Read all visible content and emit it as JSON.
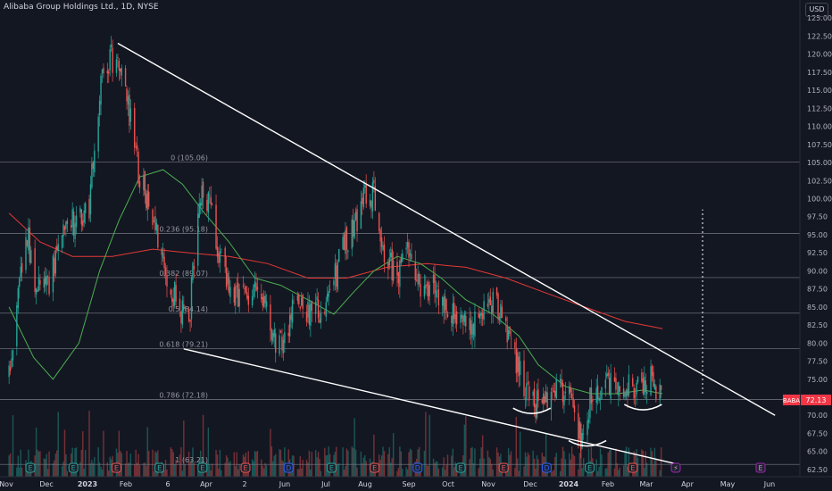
{
  "header": {
    "title": "Alibaba Group Holdings Ltd., 1D, NYSE",
    "currency": "USD"
  },
  "chart_data": {
    "type": "candlestick",
    "ylim": [
      61.5,
      127.5
    ],
    "y_ticks": [
      "62.50",
      "65.00",
      "67.50",
      "70.00",
      "72.50",
      "75.00",
      "77.50",
      "80.00",
      "82.50",
      "85.00",
      "87.50",
      "90.00",
      "92.50",
      "95.00",
      "97.50",
      "100.00",
      "102.50",
      "105.00",
      "107.50",
      "110.00",
      "112.50",
      "115.00",
      "117.50",
      "120.00",
      "122.50",
      "125.00"
    ],
    "x_ticks": [
      "Nov",
      "Dec",
      "2023",
      "Feb",
      "6",
      "Apr",
      "2",
      "Jun",
      "Jul",
      "Aug",
      "Sep",
      "Oct",
      "Nov",
      "Dec",
      "2024",
      "Feb",
      "Mar",
      "Apr",
      "May",
      "Jun"
    ],
    "x_ticks_bold": [
      "2023",
      "2024"
    ],
    "price": [
      [
        "2022-11-01",
        75
      ],
      [
        "2022-11-08",
        86
      ],
      [
        "2022-11-15",
        95
      ],
      [
        "2022-11-22",
        88
      ],
      [
        "2022-12-01",
        88
      ],
      [
        "2022-12-15",
        96
      ],
      [
        "2023-01-02",
        99
      ],
      [
        "2023-01-10",
        115
      ],
      [
        "2023-01-18",
        120
      ],
      [
        "2023-01-25",
        118
      ],
      [
        "2023-02-01",
        113
      ],
      [
        "2023-02-10",
        103
      ],
      [
        "2023-02-20",
        98
      ],
      [
        "2023-03-01",
        91
      ],
      [
        "2023-03-10",
        86
      ],
      [
        "2023-03-20",
        82
      ],
      [
        "2023-03-27",
        100
      ],
      [
        "2023-04-05",
        100
      ],
      [
        "2023-04-14",
        91
      ],
      [
        "2023-04-25",
        86
      ],
      [
        "2023-05-05",
        86
      ],
      [
        "2023-05-15",
        88
      ],
      [
        "2023-05-25",
        80
      ],
      [
        "2023-06-01",
        80
      ],
      [
        "2023-06-12",
        87
      ],
      [
        "2023-06-22",
        84
      ],
      [
        "2023-07-05",
        85
      ],
      [
        "2023-07-15",
        92
      ],
      [
        "2023-07-25",
        96
      ],
      [
        "2023-08-03",
        100
      ],
      [
        "2023-08-10",
        101
      ],
      [
        "2023-08-18",
        93
      ],
      [
        "2023-08-28",
        89
      ],
      [
        "2023-09-05",
        92
      ],
      [
        "2023-09-15",
        88
      ],
      [
        "2023-09-25",
        88
      ],
      [
        "2023-10-05",
        85
      ],
      [
        "2023-10-18",
        82
      ],
      [
        "2023-10-30",
        83
      ],
      [
        "2023-11-10",
        86
      ],
      [
        "2023-11-15",
        85
      ],
      [
        "2023-11-22",
        80
      ],
      [
        "2023-12-01",
        76
      ],
      [
        "2023-12-08",
        72
      ],
      [
        "2023-12-18",
        71
      ],
      [
        "2023-12-29",
        75
      ],
      [
        "2024-01-08",
        72
      ],
      [
        "2024-01-17",
        67
      ],
      [
        "2024-01-24",
        72
      ],
      [
        "2024-02-05",
        74
      ],
      [
        "2024-02-14",
        74
      ],
      [
        "2024-02-26",
        74
      ],
      [
        "2024-03-05",
        73
      ],
      [
        "2024-03-12",
        76
      ],
      [
        "2024-03-19",
        72.13
      ]
    ],
    "last_price": {
      "symbol": "BABA",
      "value": "72.13"
    },
    "fib_levels": [
      {
        "label": "0 (105.06)",
        "value": 105.06
      },
      {
        "label": "0.236 (95.18)",
        "value": 95.18
      },
      {
        "label": "0.382 (89.07)",
        "value": 89.07
      },
      {
        "label": "0.5 (84.14)",
        "value": 84.14
      },
      {
        "label": "0.618 (79.21)",
        "value": 79.21
      },
      {
        "label": "0.786 (72.18)",
        "value": 72.18
      },
      {
        "label": "1 (63.21)",
        "value": 63.21
      }
    ],
    "trendlines": [
      {
        "name": "upper",
        "from": [
          "2023-01-24",
          121.5
        ],
        "to": [
          "2024-06-15",
          70.0
        ]
      },
      {
        "name": "lower",
        "from": [
          "2023-03-16",
          79.2
        ],
        "to": [
          "2024-03-30",
          63.3
        ]
      }
    ],
    "ma_short": [
      [
        "2022-11-01",
        85
      ],
      [
        "2022-11-20",
        78
      ],
      [
        "2022-12-05",
        75
      ],
      [
        "2022-12-25",
        80
      ],
      [
        "2023-01-10",
        90
      ],
      [
        "2023-01-25",
        97
      ],
      [
        "2023-02-10",
        103
      ],
      [
        "2023-02-28",
        104
      ],
      [
        "2023-03-15",
        102
      ],
      [
        "2023-04-01",
        98
      ],
      [
        "2023-04-20",
        94
      ],
      [
        "2023-05-10",
        89
      ],
      [
        "2023-05-30",
        88
      ],
      [
        "2023-06-20",
        86
      ],
      [
        "2023-07-10",
        84
      ],
      [
        "2023-07-25",
        87
      ],
      [
        "2023-08-10",
        90
      ],
      [
        "2023-08-28",
        92
      ],
      [
        "2023-09-15",
        91
      ],
      [
        "2023-10-01",
        89
      ],
      [
        "2023-10-20",
        86
      ],
      [
        "2023-11-10",
        84
      ],
      [
        "2023-11-30",
        81
      ],
      [
        "2023-12-15",
        77
      ],
      [
        "2024-01-05",
        74
      ],
      [
        "2024-01-25",
        73
      ],
      [
        "2024-02-15",
        73
      ],
      [
        "2024-03-05",
        73.5
      ],
      [
        "2024-03-20",
        73
      ]
    ],
    "ma_long": [
      [
        "2022-11-01",
        98
      ],
      [
        "2022-11-25",
        94
      ],
      [
        "2022-12-20",
        92
      ],
      [
        "2023-01-20",
        92
      ],
      [
        "2023-02-20",
        93
      ],
      [
        "2023-03-20",
        92.5
      ],
      [
        "2023-04-20",
        92
      ],
      [
        "2023-05-20",
        91
      ],
      [
        "2023-06-20",
        89
      ],
      [
        "2023-07-20",
        89
      ],
      [
        "2023-08-20",
        90.5
      ],
      [
        "2023-09-20",
        91
      ],
      [
        "2023-10-20",
        90.5
      ],
      [
        "2023-11-20",
        89
      ],
      [
        "2023-12-20",
        87
      ],
      [
        "2024-01-20",
        85
      ],
      [
        "2024-02-20",
        83
      ],
      [
        "2024-03-20",
        82
      ]
    ],
    "annotations": {
      "projection_line": {
        "date": "2024-04-20",
        "from": 73,
        "to": 98.5
      },
      "arcs": [
        {
          "date": "2023-12-10",
          "value": 71
        },
        {
          "date": "2024-01-22",
          "value": 66.5
        },
        {
          "date": "2024-03-05",
          "value": 71.5
        }
      ],
      "event_markers": [
        "E",
        "E",
        "E",
        "E",
        "E",
        "E",
        "D",
        "E",
        "E",
        "D",
        "E",
        "E",
        "D",
        "E",
        "E",
        "⚡"
      ],
      "future_event": "E"
    },
    "grid": false,
    "colors": {
      "background": "#131722",
      "up": "#26a69a",
      "down": "#ef5350",
      "ma_short": "#4caf50",
      "ma_long": "#e53935",
      "trendline": "#ffffff",
      "fib": "#787b86",
      "price_tag": "#f23645"
    }
  }
}
